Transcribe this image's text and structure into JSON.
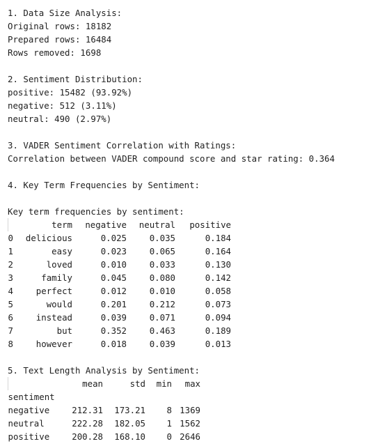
{
  "section1": {
    "heading": "1. Data Size Analysis:",
    "original": "Original rows: 18182",
    "prepared": "Prepared rows: 16484",
    "removed": "Rows removed: 1698"
  },
  "section2": {
    "heading": "2. Sentiment Distribution:",
    "positive": "positive: 15482 (93.92%)",
    "negative": "negative: 512 (3.11%)",
    "neutral": "neutral: 490 (2.97%)"
  },
  "section3": {
    "heading": "3. VADER Sentiment Correlation with Ratings:",
    "correlation": "Correlation between VADER compound score and star rating: 0.364"
  },
  "section4": {
    "heading": "4. Key Term Frequencies by Sentiment:",
    "table_title": "Key term frequencies by sentiment:",
    "columns": [
      "term",
      "negative",
      "neutral",
      "positive"
    ],
    "rows": [
      [
        "0",
        "delicious",
        "0.025",
        "0.035",
        "0.184"
      ],
      [
        "1",
        "easy",
        "0.023",
        "0.065",
        "0.164"
      ],
      [
        "2",
        "loved",
        "0.010",
        "0.033",
        "0.130"
      ],
      [
        "3",
        "family",
        "0.045",
        "0.080",
        "0.142"
      ],
      [
        "4",
        "perfect",
        "0.012",
        "0.010",
        "0.058"
      ],
      [
        "5",
        "would",
        "0.201",
        "0.212",
        "0.073"
      ],
      [
        "6",
        "instead",
        "0.039",
        "0.071",
        "0.094"
      ],
      [
        "7",
        "but",
        "0.352",
        "0.463",
        "0.189"
      ],
      [
        "8",
        "however",
        "0.018",
        "0.039",
        "0.013"
      ]
    ]
  },
  "section5": {
    "heading": "5. Text Length Analysis by Sentiment:",
    "columns": [
      "mean",
      "std",
      "min",
      "max"
    ],
    "index_name": "sentiment",
    "rows": [
      [
        "negative",
        "212.31",
        "173.21",
        "8",
        "1369"
      ],
      [
        "neutral",
        "222.28",
        "182.05",
        "1",
        "1562"
      ],
      [
        "positive",
        "200.28",
        "168.10",
        "0",
        "2646"
      ]
    ]
  }
}
